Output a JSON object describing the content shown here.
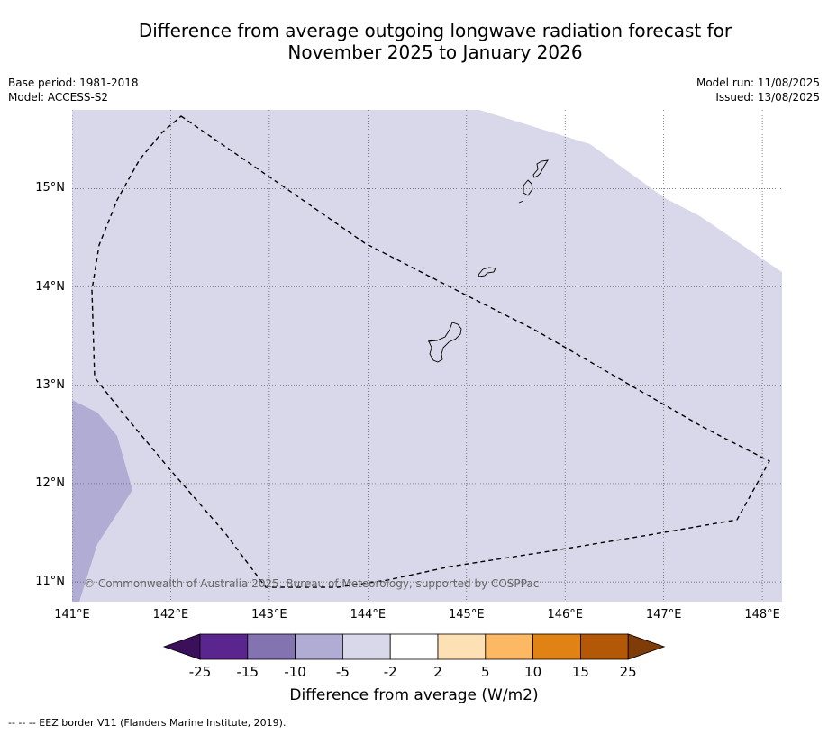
{
  "title": {
    "line1": "Difference from average outgoing longwave radiation forecast for",
    "line2": "November 2025 to January 2026"
  },
  "meta_left": {
    "base_period": "Base period: 1981-2018",
    "model": "Model: ACCESS-S2"
  },
  "meta_right": {
    "model_run": "Model run: 11/08/2025",
    "issued": "Issued: 13/08/2025"
  },
  "map": {
    "lon_labels": [
      {
        "value": 141,
        "label": "141°E"
      },
      {
        "value": 142,
        "label": "142°E"
      },
      {
        "value": 143,
        "label": "143°E"
      },
      {
        "value": 144,
        "label": "144°E"
      },
      {
        "value": 145,
        "label": "145°E"
      },
      {
        "value": 146,
        "label": "146°E"
      },
      {
        "value": 147,
        "label": "147°E"
      },
      {
        "value": 148,
        "label": "148°E"
      }
    ],
    "lat_labels": [
      {
        "value": 15,
        "label": "15°N"
      },
      {
        "value": 14,
        "label": "14°N"
      },
      {
        "value": 13,
        "label": "13°N"
      },
      {
        "value": 12,
        "label": "12°N"
      },
      {
        "value": 11,
        "label": "11°N"
      }
    ],
    "lon_range": [
      141,
      148.2
    ],
    "lat_range": [
      10.8,
      15.8
    ],
    "grid": true,
    "colors": {
      "minus5_to_minus2": "#d8d8ea",
      "minus10_to_minus5": "#b1acd3"
    },
    "copyright": "© Commonwealth of Australia 2025, Bureau of Meteorology, supported by COSPPac"
  },
  "colorbar": {
    "ticks": [
      "-25",
      "-15",
      "-10",
      "-5",
      "-2",
      "2",
      "5",
      "10",
      "15",
      "25"
    ],
    "colors": [
      "#3b0f59",
      "#5b2590",
      "#8373b0",
      "#b1acd3",
      "#d8d8ea",
      "#ffffff",
      "#fde1b5",
      "#fdb863",
      "#e08214",
      "#b35806",
      "#7f3b08"
    ],
    "label": "Difference from average (W/m2)"
  },
  "footer": "--  --  -- EEZ border V11 (Flanders Marine Institute, 2019)."
}
